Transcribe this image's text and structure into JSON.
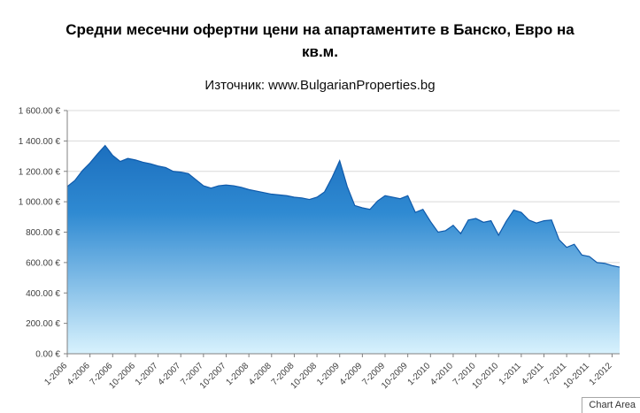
{
  "header": {
    "title": "Средни месечни офертни цени на апартаментите в Банско, Евро на кв.м.",
    "subtitle": "Източник: www.BulgarianProperties.bg"
  },
  "chart_area_label": "Chart Area",
  "chart_data": {
    "type": "area",
    "title": "Средни месечни офертни цени на апартаментите в Банско, Евро на кв.м.",
    "subtitle": "Източник: www.BulgarianProperties.bg",
    "xlabel": "",
    "ylabel": "",
    "ylim": [
      0,
      1600
    ],
    "ytick_step": 200,
    "ytick_labels": [
      "0.00 €",
      "200.00 €",
      "400.00 €",
      "600.00 €",
      "800.00 €",
      "1 000.00 €",
      "1 200.00 €",
      "1 400.00 €",
      "1 600.00 €"
    ],
    "grid": true,
    "legend": "none",
    "tick_every": 3,
    "x_tick_labels": [
      "1-2006",
      "4-2006",
      "7-2006",
      "10-2006",
      "1-2007",
      "4-2007",
      "7-2007",
      "10-2007",
      "1-2008",
      "4-2008",
      "7-2008",
      "10-2008",
      "1-2009",
      "4-2009",
      "7-2009",
      "10-2009",
      "1-2010",
      "4-2010",
      "7-2010",
      "10-2010",
      "1-2011",
      "4-2011",
      "7-2011",
      "10-2011",
      "1-2012"
    ],
    "x": [
      "1-2006",
      "2-2006",
      "3-2006",
      "4-2006",
      "5-2006",
      "6-2006",
      "7-2006",
      "8-2006",
      "9-2006",
      "10-2006",
      "11-2006",
      "12-2006",
      "1-2007",
      "2-2007",
      "3-2007",
      "4-2007",
      "5-2007",
      "6-2007",
      "7-2007",
      "8-2007",
      "9-2007",
      "10-2007",
      "11-2007",
      "12-2007",
      "1-2008",
      "2-2008",
      "3-2008",
      "4-2008",
      "5-2008",
      "6-2008",
      "7-2008",
      "8-2008",
      "9-2008",
      "10-2008",
      "11-2008",
      "12-2008",
      "1-2009",
      "2-2009",
      "3-2009",
      "4-2009",
      "5-2009",
      "6-2009",
      "7-2009",
      "8-2009",
      "9-2009",
      "10-2009",
      "11-2009",
      "12-2009",
      "1-2010",
      "2-2010",
      "3-2010",
      "4-2010",
      "5-2010",
      "6-2010",
      "7-2010",
      "8-2010",
      "9-2010",
      "10-2010",
      "11-2010",
      "12-2010",
      "1-2011",
      "2-2011",
      "3-2011",
      "4-2011",
      "5-2011",
      "6-2011",
      "7-2011",
      "8-2011",
      "9-2011",
      "10-2011",
      "11-2011",
      "12-2011",
      "1-2012",
      "2-2012"
    ],
    "values": [
      1100,
      1140,
      1205,
      1255,
      1315,
      1370,
      1305,
      1265,
      1285,
      1275,
      1260,
      1250,
      1235,
      1225,
      1200,
      1195,
      1185,
      1145,
      1105,
      1090,
      1105,
      1110,
      1105,
      1095,
      1080,
      1070,
      1060,
      1050,
      1045,
      1040,
      1030,
      1025,
      1015,
      1030,
      1065,
      1160,
      1270,
      1100,
      975,
      960,
      950,
      1005,
      1040,
      1030,
      1020,
      1040,
      930,
      950,
      870,
      800,
      810,
      845,
      790,
      880,
      890,
      865,
      875,
      780,
      870,
      945,
      930,
      880,
      860,
      875,
      880,
      750,
      700,
      720,
      650,
      640,
      600,
      595,
      580,
      570
    ],
    "colors": {
      "area_top": "#1261b4",
      "area_mid": "#2f8ad2",
      "area_bottom": "#d8f2fd",
      "line": "#0f5aab",
      "grid": "#d9d9d9",
      "axis": "#808080",
      "tick_text": "#404040"
    }
  }
}
